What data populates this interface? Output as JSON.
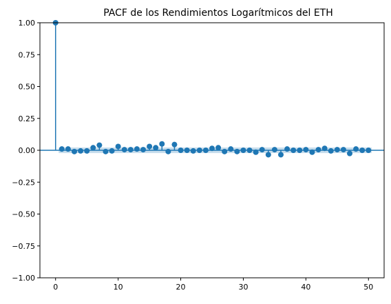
{
  "chart_data": {
    "type": "scatter",
    "title": "PACF de los Rendimientos Logarítmicos del ETH",
    "xlabel": "",
    "ylabel": "",
    "xlim": [
      -2.5,
      52.5
    ],
    "ylim": [
      -1.0,
      1.0
    ],
    "x_ticks": [
      0,
      10,
      20,
      30,
      40,
      50
    ],
    "y_ticks": [
      1.0,
      0.75,
      0.5,
      0.25,
      0.0,
      -0.25,
      -0.5,
      -0.75,
      -1.0
    ],
    "x_tick_labels": [
      "0",
      "10",
      "20",
      "30",
      "40",
      "50"
    ],
    "y_tick_labels": [
      "1.00",
      "0.75",
      "0.50",
      "0.25",
      "0.00",
      "−0.25",
      "−0.50",
      "−0.75",
      "−1.00"
    ],
    "grid": false,
    "confidence_band": 0.022,
    "series": [
      {
        "lags": [
          0,
          1,
          2,
          3,
          4,
          5,
          6,
          7,
          8,
          9,
          10,
          11,
          12,
          13,
          14,
          15,
          16,
          17,
          18,
          19,
          20,
          21,
          22,
          23,
          24,
          25,
          26,
          27,
          28,
          29,
          30,
          31,
          32,
          33,
          34,
          35,
          36,
          37,
          38,
          39,
          40,
          41,
          42,
          43,
          44,
          45,
          46,
          47,
          48,
          49,
          50
        ],
        "values": [
          1.0,
          0.01,
          0.01,
          -0.01,
          -0.005,
          -0.005,
          0.02,
          0.04,
          -0.01,
          -0.005,
          0.03,
          0.005,
          0.005,
          0.01,
          0.005,
          0.03,
          0.02,
          0.05,
          -0.01,
          0.045,
          0.0,
          0.0,
          -0.005,
          0.0,
          0.0,
          0.015,
          0.02,
          -0.01,
          0.01,
          -0.01,
          0.0,
          0.0,
          -0.015,
          0.005,
          -0.035,
          0.005,
          -0.035,
          0.01,
          0.0,
          0.0,
          0.005,
          -0.015,
          0.005,
          0.015,
          -0.005,
          0.005,
          0.005,
          -0.025,
          0.01,
          0.0,
          0.0
        ]
      }
    ],
    "colors": {
      "marker": "#1f77b4",
      "band": "#1f77b4",
      "axis": "#000000"
    }
  }
}
